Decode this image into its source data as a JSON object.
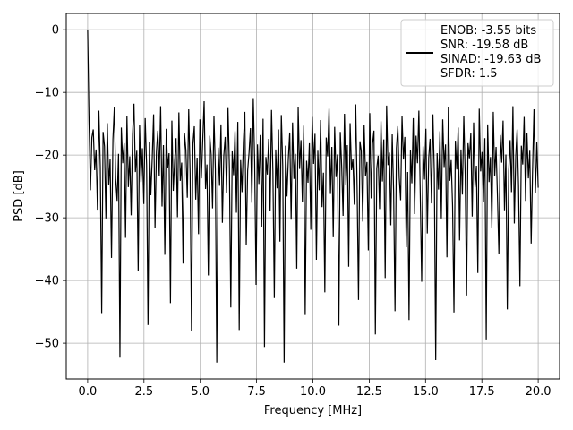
{
  "chart_data": {
    "type": "line",
    "title": "",
    "xlabel": "Frequency [MHz]",
    "ylabel": "PSD [dB]",
    "xlim": [
      -0.95,
      20.95
    ],
    "ylim": [
      -55.7,
      2.6
    ],
    "x_ticks": [
      0.0,
      2.5,
      5.0,
      7.5,
      10.0,
      12.5,
      15.0,
      17.5,
      20.0
    ],
    "x_tick_labels": [
      "0.0",
      "2.5",
      "5.0",
      "7.5",
      "10.0",
      "12.5",
      "15.0",
      "17.5",
      "20.0"
    ],
    "y_ticks": [
      0,
      -10,
      -20,
      -30,
      -40,
      -50
    ],
    "y_tick_labels": [
      "0",
      "−10",
      "−20",
      "−30",
      "−40",
      "−50"
    ],
    "grid": true,
    "legend_position": "top-right",
    "legend_lines": [
      "ENOB: -3.55 bits",
      "SNR: -19.58 dB",
      "SINAD: -19.63 dB",
      "SFDR: 1.5"
    ],
    "line_color": "#000000",
    "series": [
      {
        "x_range": [
          0,
          20
        ],
        "y_values": [
          0.0,
          -14.7,
          -25.6,
          -17.2,
          -15.9,
          -22.4,
          -19.1,
          -28.7,
          -12.9,
          -21.8,
          -45.2,
          -16.3,
          -18.6,
          -30.1,
          -14.9,
          -24.8,
          -20.7,
          -36.4,
          -17.5,
          -12.4,
          -23.9,
          -27.3,
          -19.8,
          -52.3,
          -15.6,
          -21.3,
          -18.1,
          -33.2,
          -13.8,
          -25.1,
          -20.2,
          -29.6,
          -16.7,
          -11.8,
          -22.7,
          -19.3,
          -38.5,
          -15.2,
          -24.3,
          -18.9,
          -27.8,
          -14.1,
          -21.6,
          -47.1,
          -17.9,
          -26.4,
          -20.6,
          -13.5,
          -31.7,
          -19.5,
          -16.1,
          -23.4,
          -12.2,
          -28.2,
          -18.4,
          -35.9,
          -15.8,
          -22.1,
          -19.7,
          -43.6,
          -14.5,
          -25.7,
          -20.9,
          -17.3,
          -29.9,
          -13.2,
          -24.1,
          -21.2,
          -37.3,
          -16.5,
          -19.2,
          -26.8,
          -12.7,
          -22.9,
          -48.1,
          -18.2,
          -15.4,
          -27.1,
          -20.4,
          -32.6,
          -14.3,
          -23.7,
          -17.7,
          -11.4,
          -25.4,
          -21.5,
          -39.2,
          -16.9,
          -19.9,
          -28.5,
          -13.7,
          -22.3,
          -53.1,
          -18.8,
          -24.9,
          -15.1,
          -30.8,
          -20.1,
          -17.1,
          -26.1,
          -12.5,
          -21.9,
          -44.3,
          -19.4,
          -23.2,
          -16.2,
          -29.2,
          -14.7,
          -47.9,
          -20.8,
          -25.9,
          -17.8,
          -13.1,
          -34.4,
          -22.5,
          -19.6,
          -15.7,
          -27.6,
          -10.9,
          -21.1,
          -40.7,
          -18.3,
          -24.6,
          -16.8,
          -31.4,
          -14.2,
          -50.6,
          -20.3,
          -23.1,
          -17.4,
          -28.9,
          -12.8,
          -22.6,
          -42.8,
          -19.1,
          -25.3,
          -15.9,
          -33.8,
          -13.6,
          -21.7,
          -53.1,
          -18.5,
          -26.6,
          -20.5,
          -16.4,
          -30.3,
          -14.8,
          -23.8,
          -19.8,
          -38.1,
          -12.3,
          -22.2,
          -17.6,
          -27.4,
          -15.3,
          -45.5,
          -20.9,
          -24.4,
          -18.1,
          -31.9,
          -13.9,
          -21.4,
          -16.6,
          -36.7,
          -19.3,
          -25.6,
          -14.4,
          -28.3,
          -22.8,
          -41.9,
          -17.2,
          -20.2,
          -12.6,
          -26.2,
          -18.7,
          -33.1,
          -15.5,
          -23.5,
          -19.9,
          -47.2,
          -16.3,
          -21.8,
          -29.7,
          -13.4,
          -24.7,
          -18.4,
          -37.8,
          -14.9,
          -22.4,
          -20.6,
          -27.9,
          -11.9,
          -25.2,
          -43.1,
          -17.8,
          -19.4,
          -30.6,
          -15.2,
          -23.3,
          -21.1,
          -35.2,
          -13.3,
          -26.9,
          -18.2,
          -16.1,
          -48.6,
          -22.1,
          -20.1,
          -28.6,
          -14.6,
          -24.2,
          -17.5,
          -39.6,
          -12.1,
          -21.6,
          -19.6,
          -31.2,
          -16.7,
          -25.8,
          -44.9,
          -18.9,
          -15.4,
          -23.6,
          -27.2,
          -13.8,
          -20.7,
          -17.1,
          -34.7,
          -22.7,
          -46.3,
          -19.2,
          -24.5,
          -14.1,
          -29.4,
          -16.9,
          -21.3,
          -12.9,
          -26.4,
          -40.2,
          -18.6,
          -23.9,
          -15.8,
          -32.5,
          -20.4,
          -17.4,
          -27.7,
          -13.5,
          -22.9,
          -52.7,
          -19.7,
          -25.5,
          -16.2,
          -30.1,
          -14.3,
          -21.9,
          -18.3,
          -36.3,
          -12.4,
          -24.1,
          -20.8,
          -28.1,
          -45.1,
          -17.7,
          -22.3,
          -15.6,
          -33.6,
          -19.1,
          -26.3,
          -13.7,
          -23.1,
          -42.4,
          -18.1,
          -20.5,
          -16.5,
          -29.8,
          -14.8,
          -25.1,
          -21.7,
          -38.8,
          -12.6,
          -22.6,
          -19.5,
          -27.5,
          -17.3,
          -49.4,
          -15.1,
          -24.3,
          -20.3,
          -31.6,
          -13.1,
          -23.4,
          -18.7,
          -26.7,
          -35.7,
          -16.8,
          -21.2,
          -14.5,
          -28.8,
          -19.9,
          -44.6,
          -22.5,
          -17.6,
          -25.9,
          -12.2,
          -30.9,
          -20.2,
          -15.9,
          -24.8,
          -40.9,
          -18.5,
          -21.5,
          -13.9,
          -27.3,
          -16.4,
          -23.7,
          -19.3,
          -34.1,
          -22.2,
          -12.7,
          -26.1,
          -17.9,
          -25.2
        ]
      }
    ]
  }
}
